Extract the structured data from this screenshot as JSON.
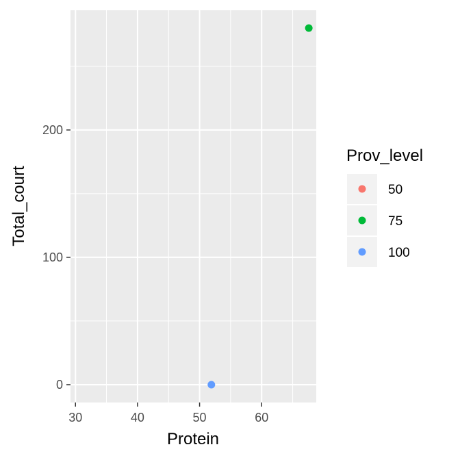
{
  "chart_data": {
    "type": "scatter",
    "title": "",
    "xlabel": "Protein",
    "ylabel": "Total_court",
    "xlim": [
      29.2,
      68.8
    ],
    "ylim": [
      -14,
      294
    ],
    "x_ticks": [
      30,
      40,
      50,
      60
    ],
    "x_tick_labels": [
      "30",
      "40",
      "50",
      "60"
    ],
    "y_ticks": [
      0,
      100,
      200
    ],
    "y_tick_labels": [
      "0",
      "100",
      "200"
    ],
    "grid": true,
    "legend": {
      "title": "Prov_level",
      "placement": "right",
      "entries": [
        {
          "label": "50",
          "color": "#F8766D"
        },
        {
          "label": "75",
          "color": "#00BA38"
        },
        {
          "label": "100",
          "color": "#619CFF"
        }
      ]
    },
    "points": [
      {
        "x": 67.6,
        "y": 280,
        "group": "75",
        "color": "#00BA38"
      },
      {
        "x": 51.9,
        "y": 0,
        "group": "100",
        "color": "#619CFF"
      }
    ]
  },
  "colors": {
    "panel_background": "#EBEBEB",
    "grid_line": "#FFFFFF"
  }
}
